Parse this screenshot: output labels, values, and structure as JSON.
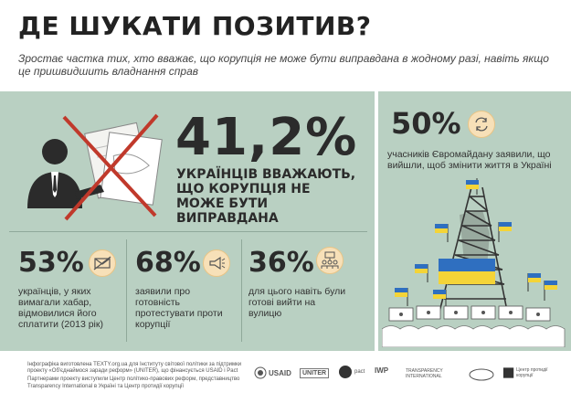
{
  "header": {
    "title": "ДЕ ШУКАТИ ПОЗИТИВ?",
    "subtitle": "Зростає частка тих, хто вважає, що корупція не може бути виправдана в жодному разі, навіть якщо це пришвидшить владнання справ"
  },
  "main_stat": {
    "percent": "41,2%",
    "text": "УКРАЇНЦІВ ВВАЖАЮТЬ, ЩО КОРУПЦІЯ НЕ МОЖЕ БУТИ ВИПРАВДАНА",
    "icon": "businessman-bribe-crossed-icon"
  },
  "stats": [
    {
      "percent": "53%",
      "text": "українців, у яких вимагали хабар, відмовилися його сплатити (2013 рік)",
      "icon": "crossed-envelope-icon"
    },
    {
      "percent": "68%",
      "text": "заявили про готовність протестувати проти корупції",
      "icon": "megaphone-icon"
    },
    {
      "percent": "36%",
      "text": "для цього навіть були готові вийти на вулицю",
      "icon": "crowd-icon"
    }
  ],
  "right_stat": {
    "percent": "50%",
    "text": "учасників Євромайдану заявили, що вийшли, щоб змінити життя в Україні",
    "icon": "cycle-arrows-icon"
  },
  "footer": {
    "line1": "Інфографіка виготовлена TEXTY.org.ua для Інституту світової політики за підтримки проекту «Об'єднаймося заради реформ» (UNITER), що фінансується USAID і Pact",
    "line2": "Партнерами проекту виступили Центр політико-правових реформ, представництво Transparency International в Україні та Центр протидії корупції"
  },
  "logos": {
    "usaid": "USAID",
    "uniter": "UNITER",
    "pact": "pact",
    "ti": "TRANSPARENCY INTERNATIONAL",
    "iwp": "IWP",
    "other": "Центр протидії корупції"
  },
  "colors": {
    "panel": "#b9d0c2",
    "cross": "#c0392b",
    "flag_blue": "#2f6fc0",
    "flag_yellow": "#f4d437",
    "icon_circle": "#f7e0b8"
  }
}
